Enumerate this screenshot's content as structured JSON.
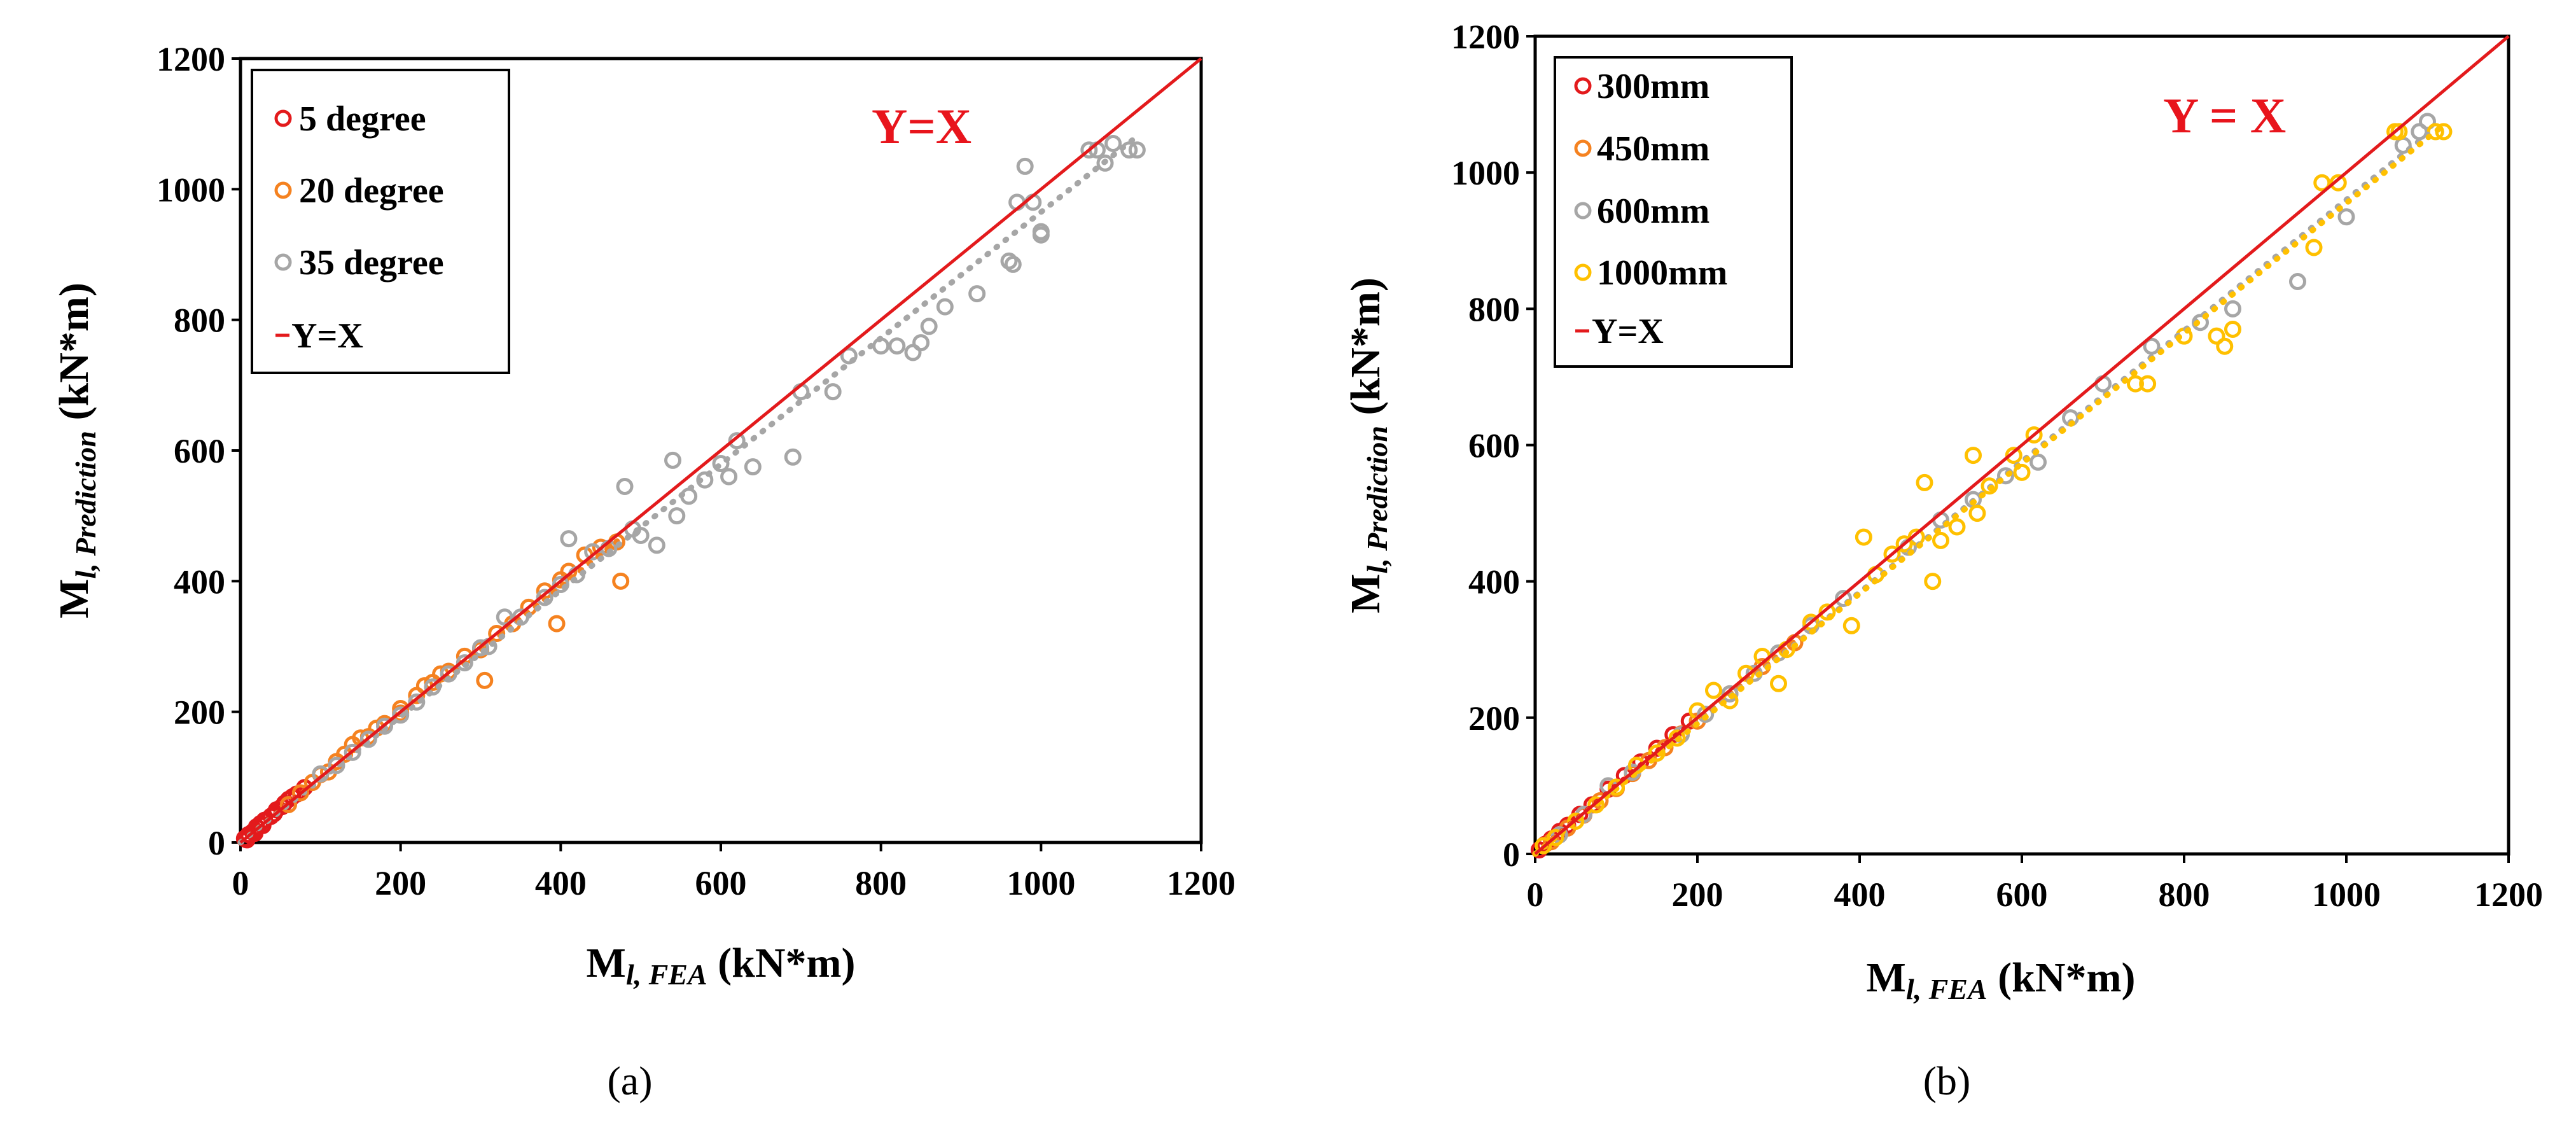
{
  "colors": {
    "red": "#e31a1c",
    "orange": "#f58220",
    "gray": "#a6a6a6",
    "gold": "#ffc000",
    "axis": "#000000"
  },
  "chart_data": [
    {
      "id": "a",
      "type": "scatter",
      "panel_label": "(a)",
      "annotation": "Y=X",
      "xlabel_main": "M",
      "xlabel_sub": "l, FEA",
      "xlabel_unit": " (kN*m)",
      "ylabel_main": "M",
      "ylabel_sub": "l, Prediction",
      "ylabel_unit": " (kN*m)",
      "xlim": [
        0,
        1200
      ],
      "ylim": [
        0,
        1200
      ],
      "xticks": [
        "0",
        "200",
        "400",
        "600",
        "800",
        "1000",
        "1200"
      ],
      "yticks": [
        "0",
        "200",
        "400",
        "600",
        "800",
        "1000",
        "1200"
      ],
      "legend_position": "top-left",
      "legend": [
        "5 degree",
        "20 degree",
        "35 degree",
        "Y=X"
      ],
      "series": [
        {
          "name": "5 degree",
          "color": "#e31a1c",
          "ratio_line": 1.0,
          "points": [
            [
              5,
              6
            ],
            [
              10,
              12
            ],
            [
              15,
              16
            ],
            [
              20,
              24
            ],
            [
              25,
              29
            ],
            [
              30,
              34
            ],
            [
              38,
              40
            ],
            [
              45,
              50
            ],
            [
              52,
              55
            ],
            [
              60,
              66
            ],
            [
              70,
              74
            ],
            [
              80,
              84
            ],
            [
              8,
              4
            ],
            [
              18,
              14
            ],
            [
              28,
              26
            ],
            [
              42,
              44
            ],
            [
              55,
              60
            ],
            [
              65,
              70
            ]
          ]
        },
        {
          "name": "20 degree",
          "color": "#f58220",
          "ratio_line": 0.98,
          "points": [
            [
              60,
              58
            ],
            [
              75,
              76
            ],
            [
              90,
              92
            ],
            [
              100,
              104
            ],
            [
              110,
              108
            ],
            [
              120,
              124
            ],
            [
              130,
              135
            ],
            [
              140,
              150
            ],
            [
              150,
              160
            ],
            [
              160,
              162
            ],
            [
              170,
              175
            ],
            [
              180,
              182
            ],
            [
              200,
              205
            ],
            [
              220,
              225
            ],
            [
              240,
              245
            ],
            [
              260,
              262
            ],
            [
              280,
              285
            ],
            [
              300,
              295
            ],
            [
              305,
              248
            ],
            [
              320,
              320
            ],
            [
              340,
              335
            ],
            [
              360,
              360
            ],
            [
              380,
              385
            ],
            [
              395,
              335
            ],
            [
              410,
              415
            ],
            [
              430,
              440
            ],
            [
              450,
              452
            ],
            [
              470,
              460
            ],
            [
              475,
              400
            ],
            [
              400,
              402
            ],
            [
              200,
              198
            ],
            [
              230,
              240
            ],
            [
              250,
              258
            ]
          ]
        },
        {
          "name": "35 degree",
          "color": "#a6a6a6",
          "ratio_line": 0.965,
          "points": [
            [
              100,
              105
            ],
            [
              120,
              118
            ],
            [
              140,
              138
            ],
            [
              160,
              158
            ],
            [
              180,
              178
            ],
            [
              200,
              195
            ],
            [
              220,
              215
            ],
            [
              240,
              238
            ],
            [
              260,
              258
            ],
            [
              280,
              275
            ],
            [
              300,
              298
            ],
            [
              310,
              300
            ],
            [
              330,
              345
            ],
            [
              350,
              345
            ],
            [
              380,
              375
            ],
            [
              400,
              395
            ],
            [
              410,
              465
            ],
            [
              420,
              410
            ],
            [
              440,
              445
            ],
            [
              460,
              450
            ],
            [
              480,
              545
            ],
            [
              490,
              480
            ],
            [
              500,
              470
            ],
            [
              520,
              455
            ],
            [
              540,
              585
            ],
            [
              545,
              500
            ],
            [
              560,
              530
            ],
            [
              580,
              555
            ],
            [
              600,
              580
            ],
            [
              610,
              560
            ],
            [
              620,
              615
            ],
            [
              640,
              575
            ],
            [
              690,
              590
            ],
            [
              700,
              690
            ],
            [
              740,
              690
            ],
            [
              760,
              745
            ],
            [
              800,
              760
            ],
            [
              820,
              760
            ],
            [
              840,
              750
            ],
            [
              850,
              765
            ],
            [
              860,
              790
            ],
            [
              880,
              820
            ],
            [
              920,
              840
            ],
            [
              960,
              890
            ],
            [
              970,
              980
            ],
            [
              980,
              1035
            ],
            [
              990,
              980
            ],
            [
              1000,
              930
            ],
            [
              1060,
              1060
            ],
            [
              1070,
              1060
            ],
            [
              1080,
              1040
            ],
            [
              1090,
              1070
            ],
            [
              1110,
              1060
            ],
            [
              1120,
              1060
            ],
            [
              1000,
              935
            ],
            [
              965,
              885
            ]
          ]
        }
      ]
    },
    {
      "id": "b",
      "type": "scatter",
      "panel_label": "(b)",
      "annotation": "Y = X",
      "xlabel_main": "M",
      "xlabel_sub": "l, FEA",
      "xlabel_unit": " (kN*m)",
      "ylabel_main": "M",
      "ylabel_sub": "l, Prediction",
      "ylabel_unit": " (kN*m)",
      "xlim": [
        0,
        1200
      ],
      "ylim": [
        0,
        1200
      ],
      "xticks": [
        "0",
        "200",
        "400",
        "600",
        "800",
        "1000",
        "1200"
      ],
      "yticks": [
        "0",
        "200",
        "400",
        "600",
        "800",
        "1000",
        "1200"
      ],
      "legend_position": "top-left",
      "legend": [
        "300mm",
        "450mm",
        "600mm",
        "1000mm",
        "Y=X"
      ],
      "series": [
        {
          "name": "300mm",
          "color": "#e31a1c",
          "ratio_line": 1.0,
          "points": [
            [
              5,
              6
            ],
            [
              12,
              14
            ],
            [
              20,
              22
            ],
            [
              30,
              33
            ],
            [
              40,
              42
            ],
            [
              55,
              58
            ],
            [
              70,
              72
            ],
            [
              90,
              95
            ],
            [
              110,
              115
            ],
            [
              130,
              135
            ],
            [
              150,
              155
            ],
            [
              170,
              175
            ],
            [
              190,
              195
            ]
          ]
        },
        {
          "name": "450mm",
          "color": "#f58220",
          "ratio_line": 0.975,
          "points": [
            [
              20,
              18
            ],
            [
              40,
              38
            ],
            [
              60,
              57
            ],
            [
              80,
              78
            ],
            [
              100,
              96
            ],
            [
              120,
              118
            ],
            [
              140,
              137
            ],
            [
              160,
              156
            ],
            [
              180,
              176
            ],
            [
              200,
              195
            ],
            [
              240,
              235
            ],
            [
              280,
              275
            ],
            [
              320,
              310
            ]
          ]
        },
        {
          "name": "600mm",
          "color": "#a6a6a6",
          "ratio_line": 0.96,
          "points": [
            [
              30,
              28
            ],
            [
              60,
              58
            ],
            [
              90,
              100
            ],
            [
              120,
              120
            ],
            [
              150,
              148
            ],
            [
              180,
              175
            ],
            [
              210,
              205
            ],
            [
              240,
              235
            ],
            [
              270,
              265
            ],
            [
              300,
              295
            ],
            [
              340,
              335
            ],
            [
              380,
              375
            ],
            [
              420,
              410
            ],
            [
              460,
              450
            ],
            [
              500,
              490
            ],
            [
              540,
              520
            ],
            [
              580,
              555
            ],
            [
              620,
              575
            ],
            [
              660,
              640
            ],
            [
              700,
              690
            ],
            [
              760,
              745
            ],
            [
              820,
              780
            ],
            [
              860,
              800
            ],
            [
              940,
              840
            ],
            [
              1000,
              935
            ],
            [
              1070,
              1040
            ],
            [
              1090,
              1060
            ],
            [
              1100,
              1075
            ]
          ]
        },
        {
          "name": "1000mm",
          "color": "#ffc000",
          "ratio_line": 0.955,
          "points": [
            [
              10,
              12
            ],
            [
              25,
              24
            ],
            [
              50,
              48
            ],
            [
              75,
              72
            ],
            [
              100,
              98
            ],
            [
              125,
              130
            ],
            [
              150,
              148
            ],
            [
              175,
              170
            ],
            [
              200,
              210
            ],
            [
              220,
              240
            ],
            [
              240,
              225
            ],
            [
              260,
              265
            ],
            [
              280,
              290
            ],
            [
              300,
              250
            ],
            [
              310,
              300
            ],
            [
              340,
              340
            ],
            [
              360,
              355
            ],
            [
              390,
              335
            ],
            [
              405,
              465
            ],
            [
              420,
              410
            ],
            [
              440,
              440
            ],
            [
              455,
              455
            ],
            [
              470,
              465
            ],
            [
              480,
              545
            ],
            [
              490,
              400
            ],
            [
              500,
              460
            ],
            [
              520,
              480
            ],
            [
              540,
              585
            ],
            [
              545,
              500
            ],
            [
              560,
              540
            ],
            [
              590,
              585
            ],
            [
              600,
              560
            ],
            [
              615,
              615
            ],
            [
              740,
              690
            ],
            [
              755,
              690
            ],
            [
              800,
              760
            ],
            [
              840,
              760
            ],
            [
              850,
              745
            ],
            [
              860,
              770
            ],
            [
              960,
              890
            ],
            [
              970,
              985
            ],
            [
              990,
              985
            ],
            [
              1060,
              1060
            ],
            [
              1065,
              1060
            ],
            [
              1110,
              1060
            ],
            [
              1120,
              1060
            ]
          ]
        }
      ]
    }
  ]
}
